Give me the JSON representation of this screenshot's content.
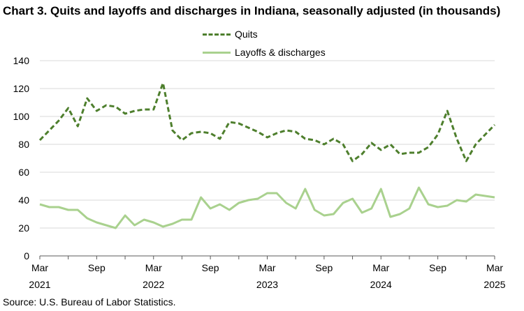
{
  "title": "Chart 3. Quits and layoffs and discharges in Indiana, seasonally adjusted (in thousands)",
  "source": "Source: U.S. Bureau of Labor Statistics.",
  "chart_data": {
    "type": "line",
    "title": "Chart 3. Quits and layoffs and discharges in Indiana, seasonally adjusted (in thousands)",
    "xlabel": "",
    "ylabel": "",
    "ylim": [
      0,
      140
    ],
    "yticks": [
      0,
      20,
      40,
      60,
      80,
      100,
      120,
      140
    ],
    "grid": true,
    "legend_position": "top-center",
    "x_start": "Mar 2021",
    "x_end": "Mar 2025",
    "x_tick_labels": [
      {
        "month": "Mar",
        "year": "2021"
      },
      {
        "month": "Sep",
        "year": ""
      },
      {
        "month": "Mar",
        "year": "2022"
      },
      {
        "month": "Sep",
        "year": ""
      },
      {
        "month": "Mar",
        "year": "2023"
      },
      {
        "month": "Sep",
        "year": ""
      },
      {
        "month": "Mar",
        "year": "2024"
      },
      {
        "month": "Sep",
        "year": ""
      },
      {
        "month": "Mar",
        "year": "2025"
      }
    ],
    "series": [
      {
        "name": "Quits",
        "color": "#4e7f2d",
        "style": "dashed",
        "values": [
          83,
          90,
          97,
          106,
          93,
          113,
          104,
          108,
          107,
          102,
          104,
          105,
          105,
          124,
          90,
          83,
          88,
          89,
          88,
          84,
          96,
          95,
          92,
          89,
          85,
          88,
          90,
          89,
          84,
          83,
          80,
          84,
          80,
          68,
          73,
          81,
          76,
          80,
          73,
          74,
          74,
          78,
          87,
          104,
          84,
          68,
          80,
          87,
          94
        ]
      },
      {
        "name": "Layoffs & discharges",
        "color": "#a9d18e",
        "style": "solid",
        "values": [
          37,
          35,
          35,
          33,
          33,
          27,
          24,
          22,
          20,
          29,
          22,
          26,
          24,
          21,
          23,
          26,
          26,
          42,
          34,
          37,
          33,
          38,
          40,
          41,
          45,
          45,
          38,
          34,
          48,
          33,
          29,
          30,
          38,
          41,
          31,
          34,
          48,
          28,
          30,
          34,
          49,
          37,
          35,
          36,
          40,
          39,
          44,
          43,
          42
        ]
      }
    ]
  }
}
